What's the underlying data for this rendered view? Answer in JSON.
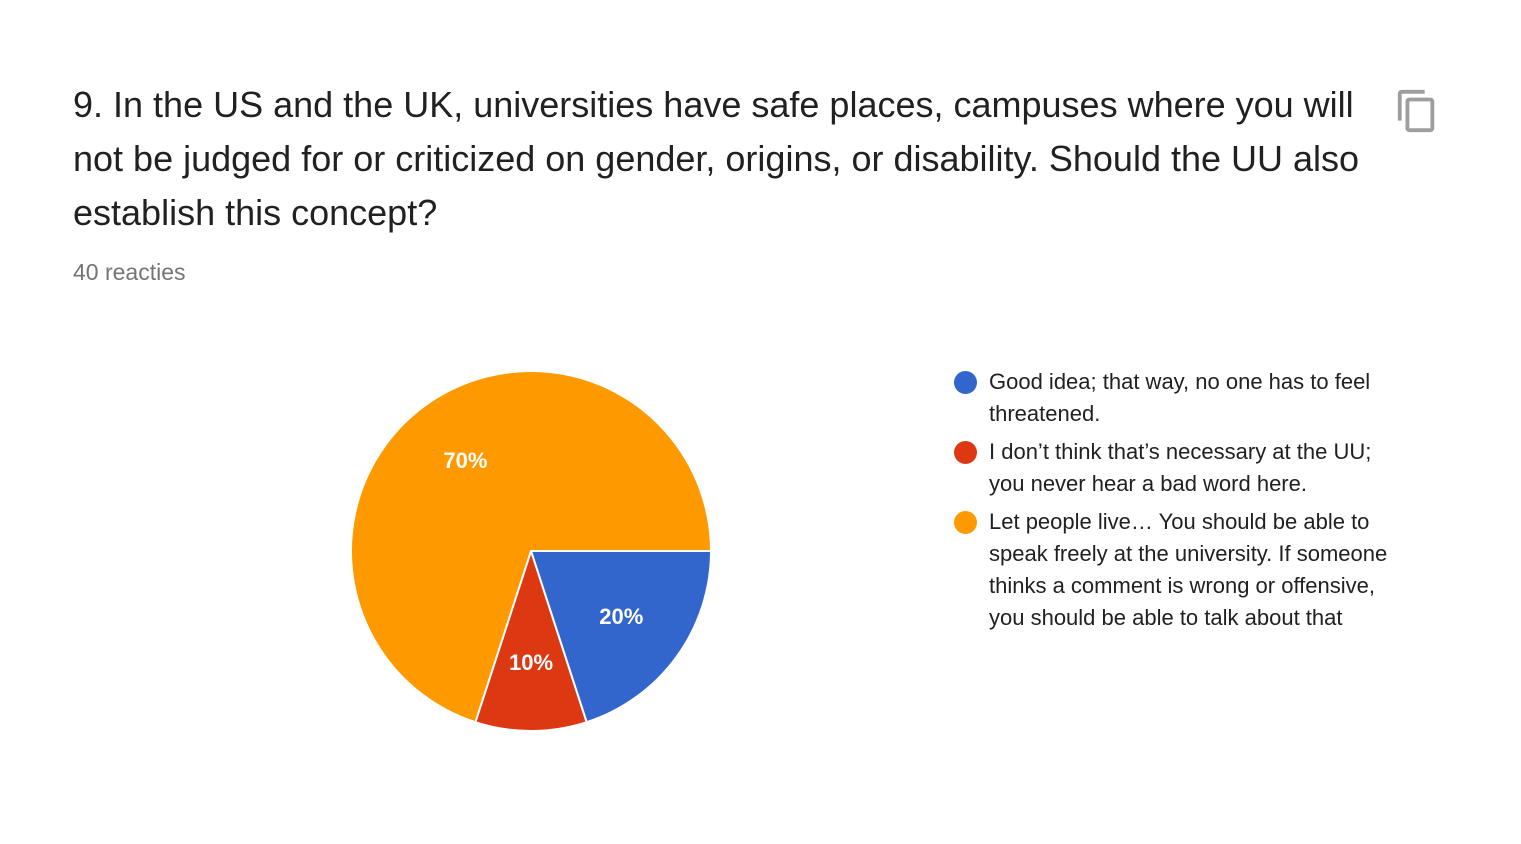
{
  "question": {
    "title": "9. In the US and the UK, universities have safe places, campuses where you will not be judged for or criticized on gender, origins, or disability. Should the UU also establish this concept?",
    "response_count": "40 reacties",
    "copy_icon": "copy-icon"
  },
  "chart_data": {
    "type": "pie",
    "categories": [
      "Good idea; that way, no one has to feel threatened.",
      "I don’t think that’s necessary at the UU; you never hear a bad word here.",
      "Let people live… You should be able to speak freely at the university. If someone thinks a comment is wrong or offensive, you should be able to talk about that"
    ],
    "values": [
      20,
      10,
      70
    ],
    "labels": [
      "20%",
      "10%",
      "70%"
    ],
    "colors": [
      "#3366cc",
      "#dc3912",
      "#ff9900"
    ],
    "legend_position": "right"
  }
}
